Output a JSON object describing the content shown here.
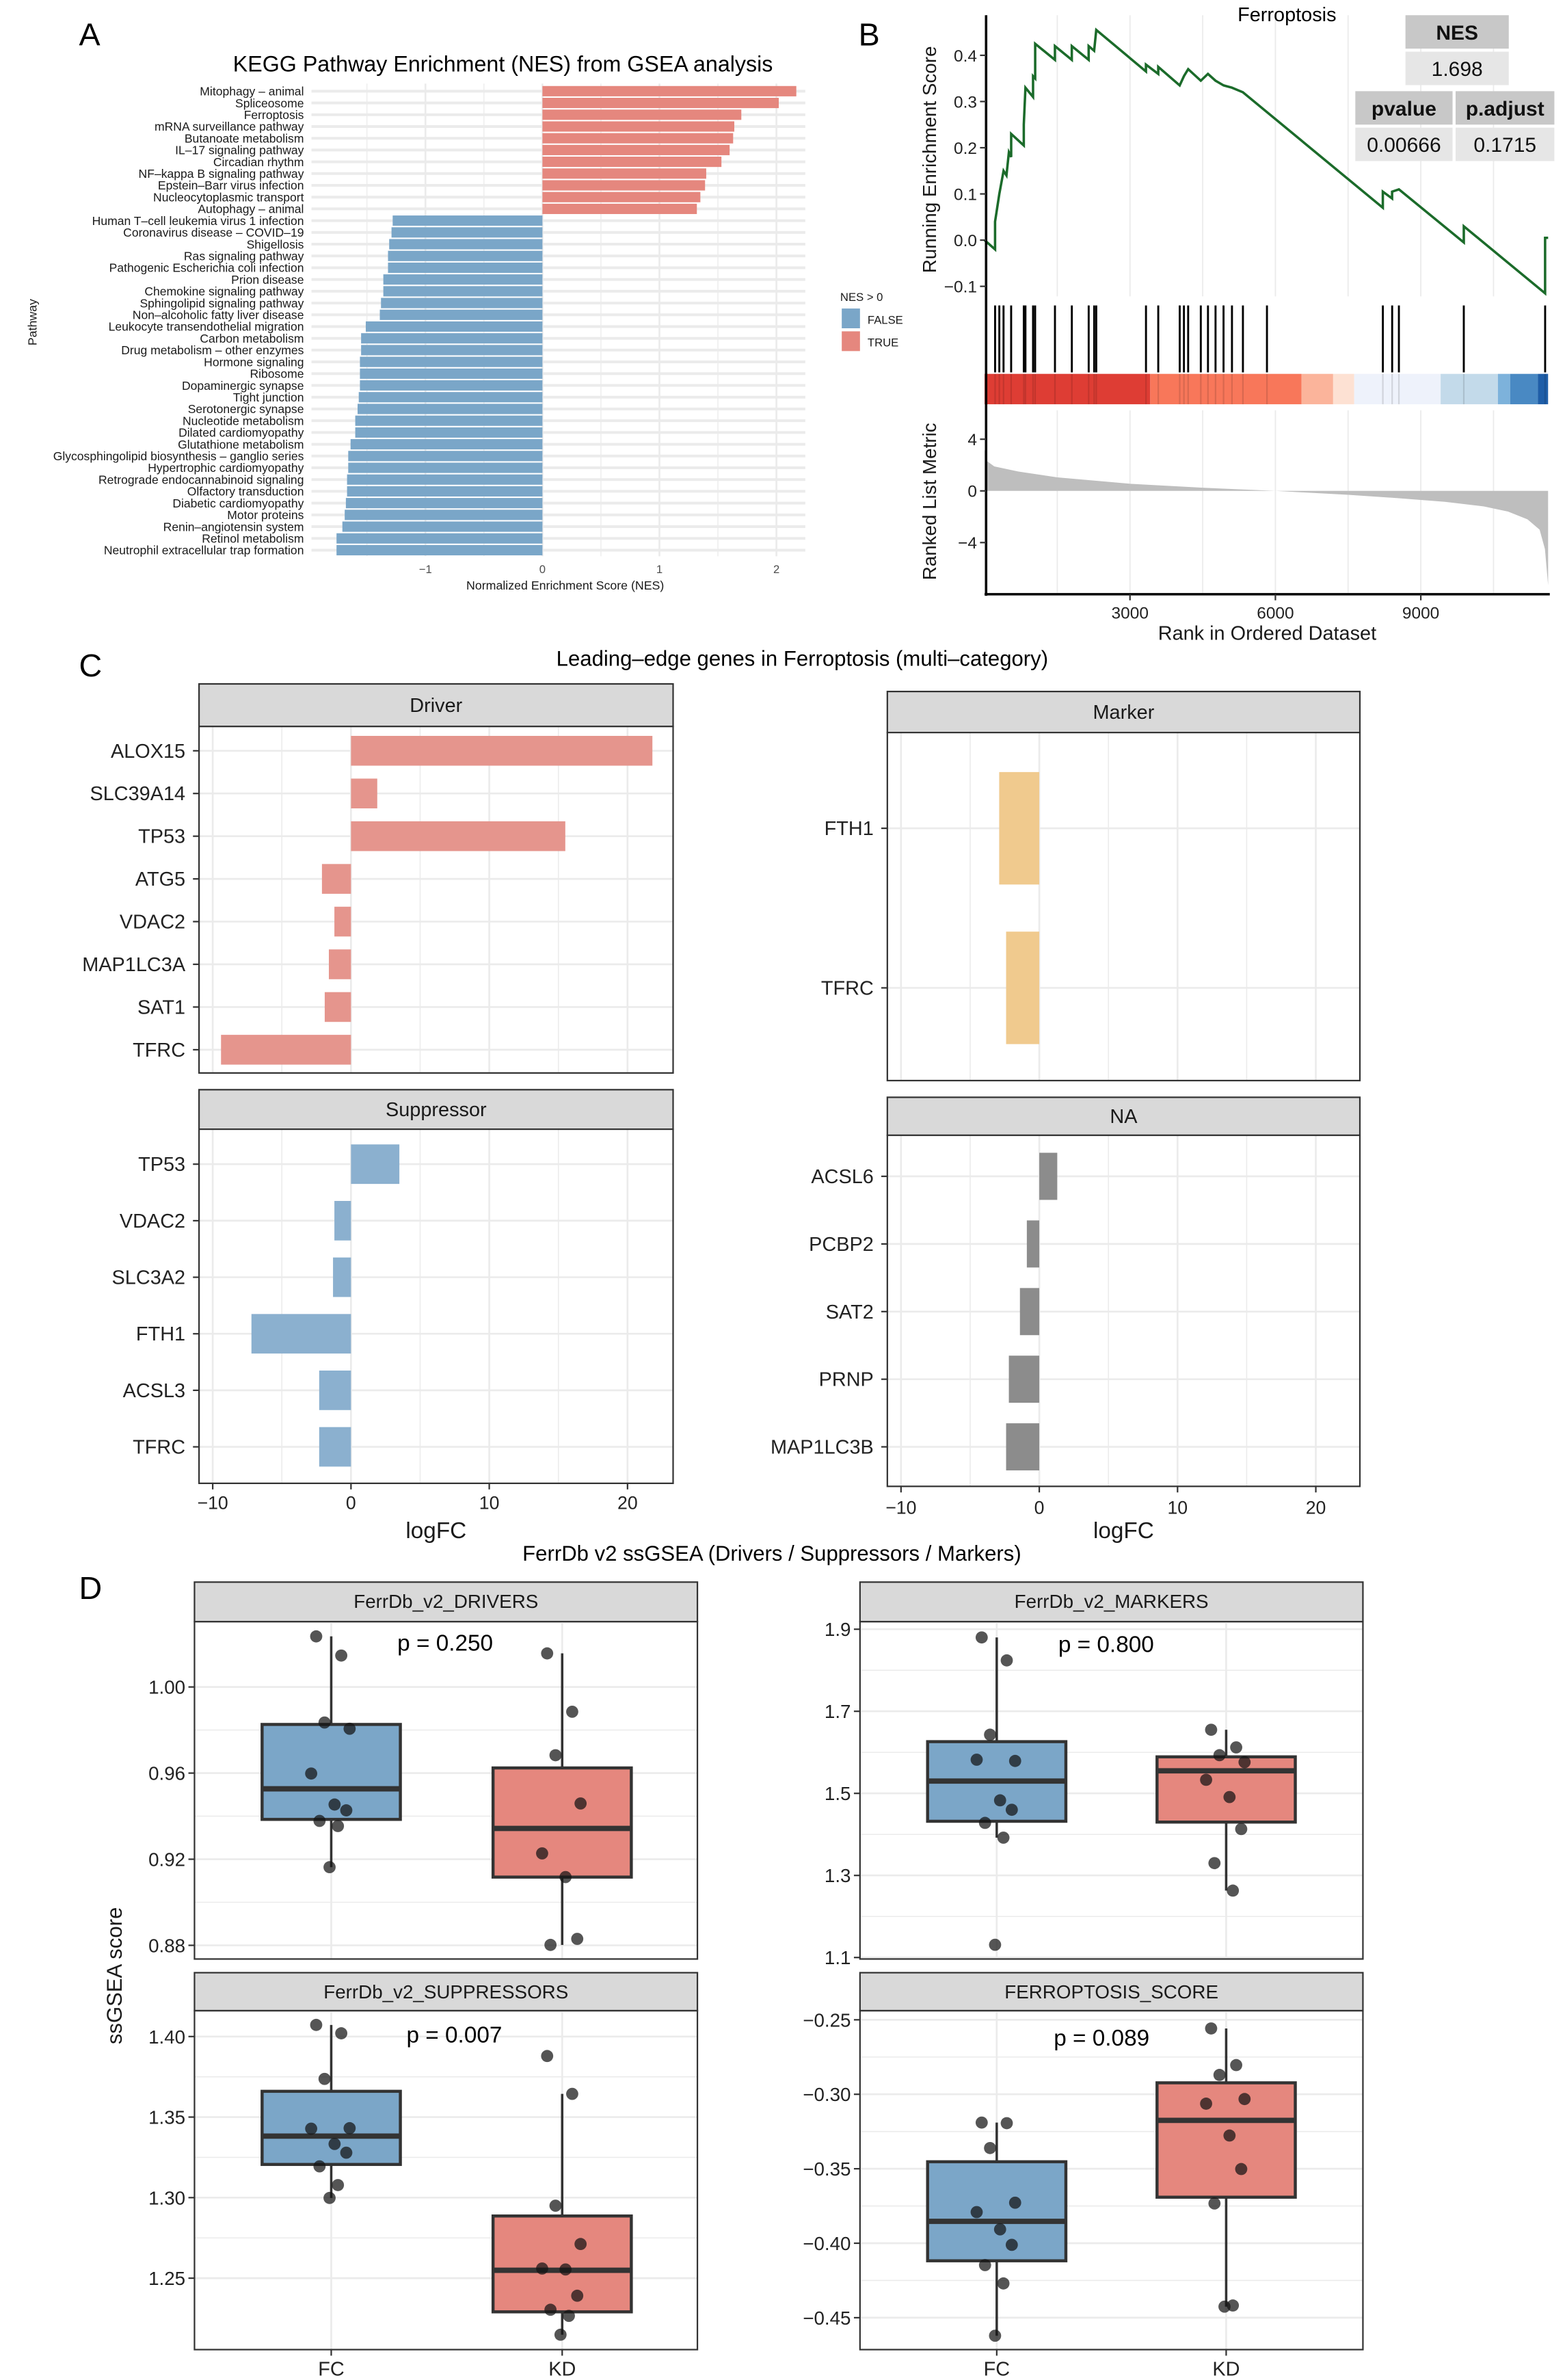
{
  "panel_labels": [
    "A",
    "B",
    "C",
    "D"
  ],
  "chart_data": [
    {
      "type": "bar",
      "orientation": "horizontal",
      "title": "KEGG Pathway Enrichment (NES) from GSEA analysis",
      "xlabel": "Normalized Enrichment Score (NES)",
      "ylabel": "Pathway",
      "xlim": [
        -1.9,
        2.3
      ],
      "x_ticks": [
        {
          "value": -1,
          "label": "−1"
        },
        {
          "value": 0,
          "label": "0"
        },
        {
          "value": 1,
          "label": "1"
        },
        {
          "value": 2,
          "label": "2"
        }
      ],
      "legend": {
        "title": "NES > 0",
        "placement": "right",
        "entries": [
          {
            "label": "FALSE",
            "color": "#7AA6C8"
          },
          {
            "label": "TRUE",
            "color": "#E5877E"
          }
        ]
      },
      "categories": [
        "Mitophagy – animal",
        "Spliceosome",
        "Ferroptosis",
        "mRNA surveillance pathway",
        "Butanoate metabolism",
        "IL–17 signaling pathway",
        "Circadian rhythm",
        "NF–kappa B signaling pathway",
        "Epstein–Barr virus infection",
        "Nucleocytoplasmic transport",
        "Autophagy – animal",
        "Human T–cell leukemia virus 1 infection",
        "Coronavirus disease – COVID–19",
        "Shigellosis",
        "Ras signaling pathway",
        "Pathogenic Escherichia coli infection",
        "Prion disease",
        "Chemokine signaling pathway",
        "Sphingolipid signaling pathway",
        "Non–alcoholic fatty liver disease",
        "Leukocyte transendothelial migration",
        "Carbon metabolism",
        "Drug metabolism – other enzymes",
        "Hormone signaling",
        "Ribosome",
        "Dopaminergic synapse",
        "Tight junction",
        "Serotonergic synapse",
        "Nucleotide metabolism",
        "Dilated cardiomyopathy",
        "Glutathione metabolism",
        "Glycosphingolipid biosynthesis – ganglio series",
        "Hypertrophic cardiomyopathy",
        "Retrograde endocannabinoid signaling",
        "Olfactory transduction",
        "Diabetic cardiomyopathy",
        "Motor proteins",
        "Renin–angiotensin system",
        "Retinol metabolism",
        "Neutrophil extracellular trap formation"
      ],
      "values": [
        2.17,
        2.02,
        1.7,
        1.64,
        1.63,
        1.6,
        1.53,
        1.4,
        1.39,
        1.35,
        1.32,
        -1.28,
        -1.29,
        -1.31,
        -1.32,
        -1.32,
        -1.36,
        -1.36,
        -1.38,
        -1.39,
        -1.51,
        -1.55,
        -1.55,
        -1.56,
        -1.56,
        -1.56,
        -1.57,
        -1.58,
        -1.6,
        -1.6,
        -1.64,
        -1.66,
        -1.66,
        -1.67,
        -1.67,
        -1.68,
        -1.69,
        -1.71,
        -1.76,
        -1.76
      ]
    },
    {
      "type": "line",
      "title": "Ferroptosis",
      "stats_table": {
        "nes_header": "NES",
        "nes_value": "1.698",
        "pvalue_header": "pvalue",
        "pvalue_value": "0.00666",
        "padjust_header": "p.adjust",
        "padjust_value": "0.1715"
      },
      "es_ylabel": "Running Enrichment Score",
      "metric_ylabel": "Ranked List Metric",
      "xlabel": "Rank in Ordered Dataset",
      "xlim": [
        0,
        11626
      ],
      "x_ticks": [
        {
          "value": 3000,
          "label": "3000"
        },
        {
          "value": 6000,
          "label": "6000"
        },
        {
          "value": 9000,
          "label": "9000"
        }
      ],
      "es_ylim": [
        -0.12,
        0.48
      ],
      "es_ticks": [
        {
          "value": 0.4,
          "label": "0.4"
        },
        {
          "value": 0.3,
          "label": "0.3"
        },
        {
          "value": 0.2,
          "label": "0.2"
        },
        {
          "value": 0.1,
          "label": "0.1"
        },
        {
          "value": 0.0,
          "label": "0.0"
        },
        {
          "value": -0.1,
          "label": "−0.1"
        }
      ],
      "metric_ticks": [
        {
          "value": 4,
          "label": "4"
        },
        {
          "value": 0,
          "label": "0"
        },
        {
          "value": -4,
          "label": "−4"
        }
      ],
      "es_color": "#1B6B2A",
      "es_curve": [
        [
          0,
          0
        ],
        [
          217,
          -0.02
        ],
        [
          217,
          0.04
        ],
        [
          304,
          0.1
        ],
        [
          391,
          0.15
        ],
        [
          450,
          0.14
        ],
        [
          500,
          0.19
        ],
        [
          548,
          0.18
        ],
        [
          548,
          0.23
        ],
        [
          809,
          0.205
        ],
        [
          809,
          0.25
        ],
        [
          843,
          0.33
        ],
        [
          1000,
          0.31
        ],
        [
          1000,
          0.355
        ],
        [
          1043,
          0.35
        ],
        [
          1043,
          0.425
        ],
        [
          1452,
          0.39
        ],
        [
          1452,
          0.42
        ],
        [
          1800,
          0.39
        ],
        [
          1800,
          0.42
        ],
        [
          2148,
          0.39
        ],
        [
          2148,
          0.42
        ],
        [
          2261,
          0.41
        ],
        [
          2304,
          0.455
        ],
        [
          3330,
          0.365
        ],
        [
          3330,
          0.38
        ],
        [
          3583,
          0.36
        ],
        [
          3583,
          0.375
        ],
        [
          4026,
          0.335
        ],
        [
          4113,
          0.355
        ],
        [
          4200,
          0.37
        ],
        [
          4461,
          0.345
        ],
        [
          4609,
          0.36
        ],
        [
          4765,
          0.345
        ],
        [
          4930,
          0.335
        ],
        [
          5104,
          0.33
        ],
        [
          5330,
          0.32
        ],
        [
          8217,
          0.07
        ],
        [
          8217,
          0.105
        ],
        [
          8409,
          0.09
        ],
        [
          8409,
          0.105
        ],
        [
          8548,
          0.11
        ],
        [
          9887,
          -0.005
        ],
        [
          9887,
          0.03
        ],
        [
          11565,
          -0.115
        ],
        [
          11565,
          0.005
        ],
        [
          11626,
          0.005
        ]
      ],
      "hits": [
        217,
        304,
        391,
        548,
        809,
        843,
        1000,
        1043,
        1452,
        1800,
        2148,
        2261,
        2304,
        3330,
        3583,
        4026,
        4113,
        4200,
        4461,
        4609,
        4765,
        4930,
        5104,
        5330,
        5826,
        8217,
        8409,
        8548,
        9887,
        11565
      ],
      "color_bar": [
        {
          "from": 0,
          "to": 3417,
          "color": "#DE3D34"
        },
        {
          "from": 3417,
          "to": 6539,
          "color": "#F8775A"
        },
        {
          "from": 6539,
          "to": 7191,
          "color": "#FBB49B"
        },
        {
          "from": 7191,
          "to": 7626,
          "color": "#FDE1D3"
        },
        {
          "from": 7626,
          "to": 9409,
          "color": "#EEF2FB"
        },
        {
          "from": 9409,
          "to": 10591,
          "color": "#C3DAEA"
        },
        {
          "from": 10591,
          "to": 10843,
          "color": "#7DB2DB"
        },
        {
          "from": 10843,
          "to": 11417,
          "color": "#4989C3"
        },
        {
          "from": 11417,
          "to": 11626,
          "color": "#1F5EA8"
        }
      ],
      "metric_curve": [
        [
          0,
          3.2
        ],
        [
          50,
          2.3
        ],
        [
          200,
          1.9
        ],
        [
          700,
          1.5
        ],
        [
          1500,
          1.05
        ],
        [
          3000,
          0.55
        ],
        [
          4500,
          0.25
        ],
        [
          6000,
          0
        ],
        [
          7500,
          -0.3
        ],
        [
          8500,
          -0.55
        ],
        [
          9500,
          -0.85
        ],
        [
          10300,
          -1.2
        ],
        [
          10800,
          -1.6
        ],
        [
          11200,
          -2.2
        ],
        [
          11450,
          -3.0
        ],
        [
          11560,
          -4.5
        ],
        [
          11626,
          -7.3
        ]
      ]
    },
    {
      "type": "bar",
      "orientation": "horizontal",
      "title": "Leading–edge genes in Ferroptosis (multi–category)",
      "xlabel": "logFC",
      "xlim": [
        -11,
        23
      ],
      "x_ticks": [
        {
          "value": -10,
          "label": "−10"
        },
        {
          "value": 0,
          "label": "0"
        },
        {
          "value": 10,
          "label": "10"
        },
        {
          "value": 20,
          "label": "20"
        }
      ],
      "facets": [
        {
          "name": "Driver",
          "color": "#E5958D",
          "genes": [
            "ALOX15",
            "SLC39A14",
            "TP53",
            "ATG5",
            "VDAC2",
            "MAP1LC3A",
            "SAT1",
            "TFRC"
          ],
          "values": [
            21.8,
            1.9,
            15.5,
            -2.1,
            -1.2,
            -1.6,
            -1.9,
            -9.4
          ]
        },
        {
          "name": "Marker",
          "color": "#F0CA8E",
          "genes": [
            "FTH1",
            "TFRC"
          ],
          "values": [
            -2.9,
            -2.4
          ]
        },
        {
          "name": "Suppressor",
          "color": "#8BB0CF",
          "genes": [
            "TP53",
            "VDAC2",
            "SLC3A2",
            "FTH1",
            "ACSL3",
            "TFRC"
          ],
          "values": [
            3.5,
            -1.2,
            -1.3,
            -7.2,
            -2.3,
            -2.3
          ]
        },
        {
          "name": "NA",
          "color": "#8C8C8C",
          "genes": [
            "ACSL6",
            "PCBP2",
            "SAT2",
            "PRNP",
            "MAP1LC3B"
          ],
          "values": [
            1.3,
            -0.9,
            -1.4,
            -2.2,
            -2.4
          ]
        }
      ]
    },
    {
      "type": "box",
      "title": "FerrDb v2 ssGSEA (Drivers / Suppressors / Markers)",
      "ylabel": "ssGSEA score",
      "group_labels": [
        "FC",
        "KD"
      ],
      "group_colors": [
        "#7BA6C8",
        "#E5877E"
      ],
      "facets": [
        {
          "name": "FerrDb_v2_DRIVERS",
          "p_label": "p = 0.250",
          "y_ticks": [
            {
              "value": 1.0,
              "label": "1.00"
            },
            {
              "value": 0.96,
              "label": "0.96"
            },
            {
              "value": 0.92,
              "label": "0.92"
            },
            {
              "value": 0.88,
              "label": "0.88"
            }
          ],
          "groups": [
            {
              "name": "FC",
              "points": [
                1.0235,
                1.0146,
                0.9835,
                0.9806,
                0.9598,
                0.9454,
                0.9427,
                0.9378,
                0.9354,
                0.9163
              ],
              "q1": 0.9385,
              "median": 0.9527,
              "q3": 0.9826,
              "whisker_low": 0.9163,
              "whisker_high": 1.0235
            },
            {
              "name": "KD",
              "points": [
                1.0156,
                0.9885,
                0.9683,
                0.9459,
                0.9227,
                0.9117,
                0.883,
                0.8802
              ],
              "q1": 0.9117,
              "median": 0.9343,
              "q3": 0.9624,
              "whisker_low": 0.8802,
              "whisker_high": 1.0156
            }
          ]
        },
        {
          "name": "FerrDb_v2_MARKERS",
          "p_label": "p = 0.800",
          "y_ticks": [
            {
              "value": 1.9,
              "label": "1.9"
            },
            {
              "value": 1.7,
              "label": "1.7"
            },
            {
              "value": 1.5,
              "label": "1.5"
            },
            {
              "value": 1.3,
              "label": "1.3"
            },
            {
              "value": 1.1,
              "label": "1.1"
            }
          ],
          "groups": [
            {
              "name": "FC",
              "points": [
                1.88,
                1.824,
                1.643,
                1.579,
                1.582,
                1.483,
                1.46,
                1.428,
                1.392,
                1.131
              ],
              "q1": 1.432,
              "median": 1.53,
              "q3": 1.626,
              "whisker_low": 1.392,
              "whisker_high": 1.88
            },
            {
              "name": "KD",
              "points": [
                1.655,
                1.612,
                1.593,
                1.576,
                1.533,
                1.491,
                1.413,
                1.33,
                1.263
              ],
              "q1": 1.43,
              "median": 1.555,
              "q3": 1.589,
              "whisker_low": 1.263,
              "whisker_high": 1.655
            }
          ]
        },
        {
          "name": "FerrDb_v2_SUPPRESSORS",
          "p_label": "p = 0.007",
          "y_ticks": [
            {
              "value": 1.4,
              "label": "1.40"
            },
            {
              "value": 1.35,
              "label": "1.35"
            },
            {
              "value": 1.3,
              "label": "1.30"
            },
            {
              "value": 1.25,
              "label": "1.25"
            }
          ],
          "groups": [
            {
              "name": "FC",
              "points": [
                1.4072,
                1.402,
                1.3737,
                1.3431,
                1.3428,
                1.3333,
                1.3279,
                1.3194,
                1.3078,
                1.2998
              ],
              "q1": 1.3206,
              "median": 1.3382,
              "q3": 1.366,
              "whisker_low": 1.2998,
              "whisker_high": 1.4072
            },
            {
              "name": "KD",
              "points": [
                1.3879,
                1.3644,
                1.295,
                1.2712,
                1.256,
                1.2554,
                1.2391,
                1.2304,
                1.2266,
                1.2149
              ],
              "q1": 1.2291,
              "median": 1.2549,
              "q3": 1.2886,
              "whisker_low": 1.2149,
              "whisker_high": 1.3644
            }
          ]
        },
        {
          "name": "FERROPTOSIS_SCORE",
          "p_label": "p = 0.089",
          "y_ticks": [
            {
              "value": -0.25,
              "label": "−0.25"
            },
            {
              "value": -0.3,
              "label": "−0.30"
            },
            {
              "value": -0.35,
              "label": "−0.35"
            },
            {
              "value": -0.4,
              "label": "−0.40"
            },
            {
              "value": -0.45,
              "label": "−0.45"
            }
          ],
          "groups": [
            {
              "name": "FC",
              "points": [
                -0.319,
                -0.3194,
                -0.3361,
                -0.3728,
                -0.3791,
                -0.3907,
                -0.4011,
                -0.4147,
                -0.427,
                -0.4621
              ],
              "q1": -0.4118,
              "median": -0.3853,
              "q3": -0.3453,
              "whisker_low": -0.4621,
              "whisker_high": -0.319
            },
            {
              "name": "KD",
              "points": [
                -0.2558,
                -0.2804,
                -0.287,
                -0.3032,
                -0.3063,
                -0.3277,
                -0.3502,
                -0.3733,
                -0.4418,
                -0.4426
              ],
              "q1": -0.3691,
              "median": -0.3175,
              "q3": -0.2923,
              "whisker_low": -0.4426,
              "whisker_high": -0.2558
            }
          ]
        }
      ]
    }
  ]
}
